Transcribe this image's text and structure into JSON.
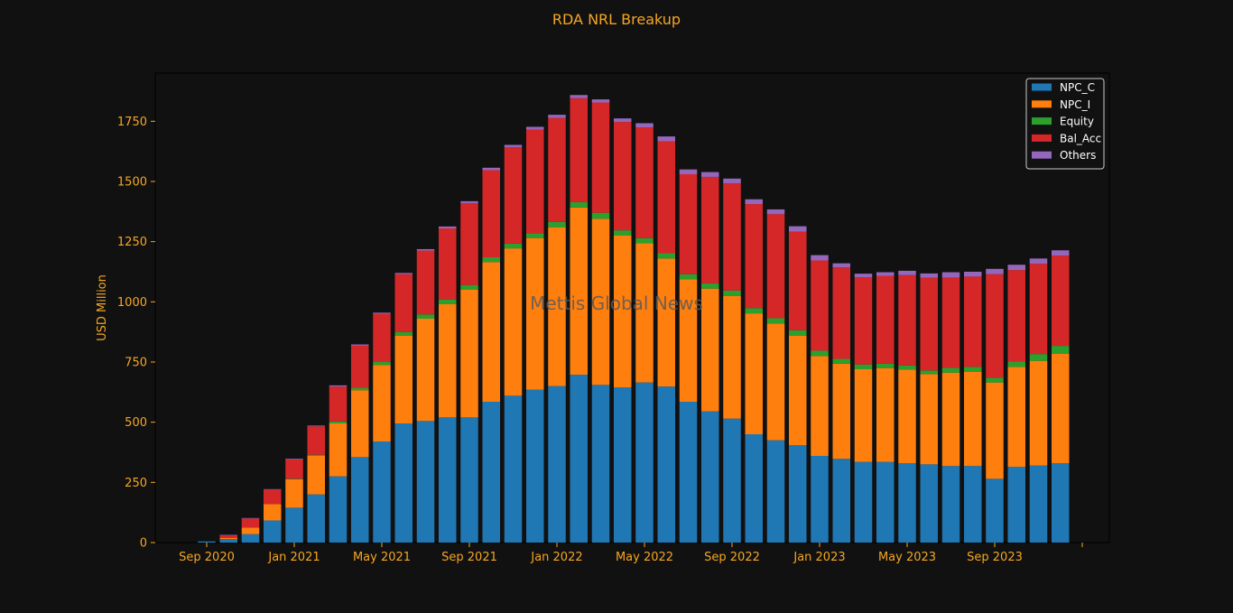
{
  "chart_data": {
    "type": "bar",
    "stacked": true,
    "title": "RDA NRL Breakup",
    "xlabel": "",
    "ylabel": "USD Million",
    "watermark": "Mettis Global News",
    "ylim": [
      0,
      1950
    ],
    "yticks": [
      0,
      250,
      500,
      750,
      1000,
      1250,
      1500,
      1750
    ],
    "x_tick_labels": [
      {
        "month_index": 0,
        "label": "Sep 2020"
      },
      {
        "month_index": 4,
        "label": "Jan 2021"
      },
      {
        "month_index": 8,
        "label": "May 2021"
      },
      {
        "month_index": 12,
        "label": "Sep 2021"
      },
      {
        "month_index": 16,
        "label": "Jan 2022"
      },
      {
        "month_index": 20,
        "label": "May 2022"
      },
      {
        "month_index": 24,
        "label": "Sep 2022"
      },
      {
        "month_index": 28,
        "label": "Jan 2023"
      },
      {
        "month_index": 32,
        "label": "May 2023"
      },
      {
        "month_index": 36,
        "label": "Sep 2023"
      },
      {
        "month_index": 40,
        "label": ""
      }
    ],
    "categories": [
      "Sep 2020",
      "Oct 2020",
      "Nov 2020",
      "Dec 2020",
      "Jan 2021",
      "Feb 2021",
      "Mar 2021",
      "Apr 2021",
      "May 2021",
      "Jun 2021",
      "Jul 2021",
      "Aug 2021",
      "Sep 2021",
      "Oct 2021",
      "Nov 2021",
      "Dec 2021",
      "Jan 2022",
      "Feb 2022",
      "Mar 2022",
      "Apr 2022",
      "May 2022",
      "Jun 2022",
      "Jul 2022",
      "Aug 2022",
      "Sep 2022",
      "Oct 2022",
      "Nov 2022",
      "Dec 2022",
      "Jan 2023",
      "Feb 2023",
      "Mar 2023",
      "Apr 2023",
      "May 2023",
      "Jun 2023",
      "Jul 2023",
      "Aug 2023",
      "Sep 2023",
      "Oct 2023",
      "Nov 2023",
      "Dec 2023"
    ],
    "series": [
      {
        "name": "NPC_C",
        "color": "#1f77b4",
        "values": [
          5,
          15,
          35,
          92,
          145,
          200,
          275,
          355,
          420,
          495,
          505,
          520,
          520,
          585,
          610,
          635,
          650,
          697,
          655,
          645,
          665,
          648,
          585,
          545,
          515,
          450,
          425,
          405,
          360,
          348,
          335,
          335,
          330,
          325,
          318,
          318,
          265,
          315,
          320,
          330
        ]
      },
      {
        "name": "NPC_I",
        "color": "#ff7f0e",
        "values": [
          0,
          5,
          27,
          68,
          118,
          160,
          220,
          278,
          318,
          365,
          425,
          470,
          530,
          580,
          612,
          630,
          660,
          695,
          690,
          630,
          578,
          532,
          508,
          510,
          510,
          502,
          485,
          455,
          415,
          395,
          385,
          390,
          388,
          375,
          388,
          392,
          400,
          415,
          435,
          455
        ]
      },
      {
        "name": "Equity",
        "color": "#2ca02c",
        "values": [
          0,
          0,
          0,
          0,
          2,
          5,
          8,
          10,
          12,
          15,
          18,
          20,
          20,
          20,
          20,
          20,
          22,
          22,
          25,
          22,
          22,
          22,
          22,
          22,
          22,
          22,
          22,
          22,
          22,
          20,
          20,
          18,
          18,
          15,
          20,
          20,
          20,
          22,
          28,
          32
        ]
      },
      {
        "name": "Bal_Acc",
        "color": "#d62728",
        "values": [
          0,
          10,
          38,
          60,
          80,
          118,
          145,
          175,
          200,
          240,
          265,
          295,
          340,
          362,
          400,
          430,
          432,
          432,
          458,
          450,
          460,
          465,
          415,
          442,
          445,
          432,
          432,
          410,
          375,
          380,
          362,
          365,
          375,
          385,
          375,
          375,
          430,
          380,
          375,
          375
        ]
      },
      {
        "name": "Others",
        "color": "#9467bd",
        "values": [
          0,
          2,
          2,
          2,
          3,
          3,
          5,
          5,
          5,
          5,
          6,
          8,
          8,
          10,
          10,
          12,
          13,
          13,
          13,
          15,
          17,
          20,
          20,
          20,
          20,
          20,
          20,
          22,
          22,
          17,
          15,
          15,
          18,
          18,
          22,
          20,
          22,
          22,
          22,
          22
        ]
      }
    ],
    "legend": {
      "position": "top-right"
    },
    "grid": false
  },
  "colors": {
    "background": "#111111",
    "plot_background": "#111111",
    "axis": "#000000",
    "text_accent": "#f5a623",
    "legend_bg": "#111111",
    "legend_border": "#cccccc",
    "legend_text": "#ffffff",
    "watermark": "#5a5a5a"
  }
}
